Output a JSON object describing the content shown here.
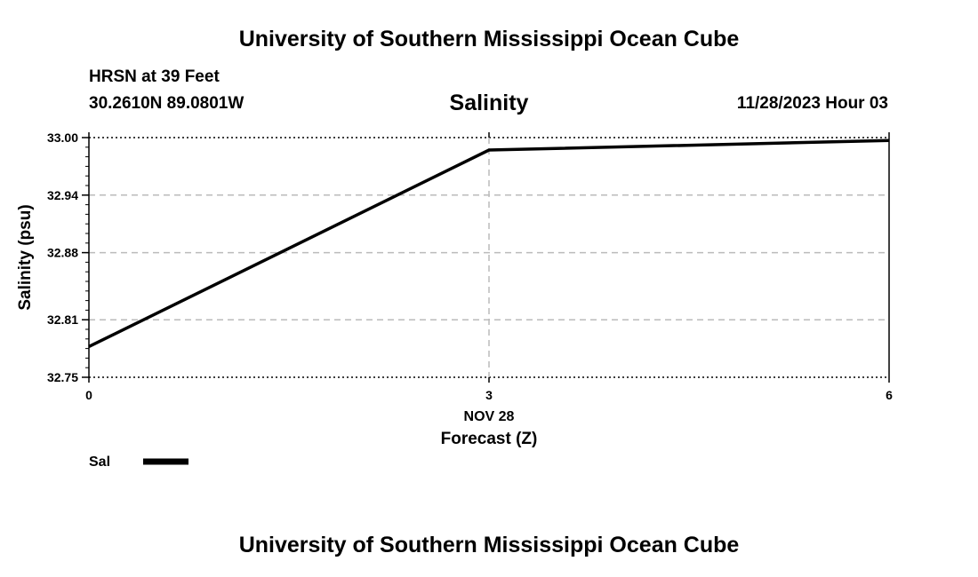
{
  "header": {
    "title": "University of Southern Mississippi Ocean Cube",
    "station": "HRSN at 39 Feet",
    "coords": "30.2610N  89.0801W",
    "datetime": "11/28/2023 Hour 03"
  },
  "footer": {
    "title": "University of Southern Mississippi Ocean Cube"
  },
  "chart_data": {
    "type": "line",
    "title": "Salinity",
    "xlabel": "Forecast (Z)",
    "x_date_label": "NOV 28",
    "ylabel": "Salinity (psu)",
    "xlim": [
      0,
      6
    ],
    "ylim": [
      32.75,
      33.0
    ],
    "x_ticks": [
      "0",
      "3",
      "6"
    ],
    "y_ticks": [
      "32.75",
      "32.81",
      "32.88",
      "32.94",
      "33.00"
    ],
    "grid": true,
    "legend_position": "bottom-left",
    "series": [
      {
        "name": "Sal",
        "color": "#000000",
        "x": [
          0,
          3,
          6
        ],
        "y": [
          32.782,
          32.987,
          32.997
        ]
      }
    ]
  }
}
